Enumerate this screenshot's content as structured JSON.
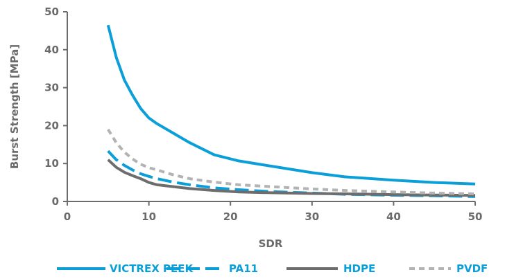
{
  "chart_data": {
    "type": "line",
    "xlabel": "SDR",
    "ylabel": "Burst Strength [MPa]",
    "xlim": [
      0,
      50
    ],
    "ylim": [
      0,
      50
    ],
    "xticks": [
      0,
      10,
      20,
      30,
      40,
      50
    ],
    "yticks": [
      0,
      10,
      20,
      30,
      40,
      50
    ],
    "grid": false,
    "legend_position": "bottom",
    "series": [
      {
        "name": "VICTREX PEEK",
        "color": "#0a9fd8",
        "dash": "solid",
        "x": [
          5,
          6,
          7,
          8,
          9,
          10,
          11,
          13,
          15,
          18,
          21,
          25,
          30,
          34,
          40,
          45,
          50
        ],
        "y": [
          46.5,
          38,
          32,
          28,
          24.5,
          22,
          20.5,
          18,
          15.5,
          12.3,
          10.7,
          9.3,
          7.6,
          6.5,
          5.6,
          5.0,
          4.6
        ]
      },
      {
        "name": "PA11",
        "color": "#0a9fd8",
        "dash": "long-dash",
        "x": [
          5,
          6,
          7,
          8,
          9,
          10,
          11,
          13,
          15,
          18,
          21,
          25,
          30,
          34,
          40,
          45,
          50
        ],
        "y": [
          13.3,
          11,
          9.5,
          8.3,
          7.3,
          6.6,
          6.0,
          5.1,
          4.4,
          3.6,
          3.1,
          2.6,
          2.2,
          1.9,
          1.65,
          1.5,
          1.3
        ]
      },
      {
        "name": "HDPE",
        "color": "#6d6d6d",
        "dash": "solid",
        "x": [
          5,
          6,
          7,
          8,
          9,
          10,
          11,
          13,
          15,
          18,
          21,
          25,
          30,
          34,
          40,
          45,
          50
        ],
        "y": [
          11.0,
          9.0,
          7.7,
          6.8,
          6.0,
          5.0,
          4.4,
          3.9,
          3.4,
          2.9,
          2.5,
          2.3,
          2.1,
          2.0,
          1.8,
          1.7,
          1.6
        ]
      },
      {
        "name": "PVDF",
        "color": "#b3b3b3",
        "dash": "short-dash",
        "x": [
          5,
          6,
          7,
          8,
          9,
          10,
          11,
          13,
          15,
          18,
          21,
          25,
          30,
          34,
          40,
          45,
          50
        ],
        "y": [
          19.0,
          15.5,
          13.0,
          11.2,
          9.8,
          8.9,
          8.3,
          7.0,
          6.0,
          5.1,
          4.4,
          3.9,
          3.3,
          2.9,
          2.5,
          2.2,
          2.0
        ]
      }
    ]
  }
}
